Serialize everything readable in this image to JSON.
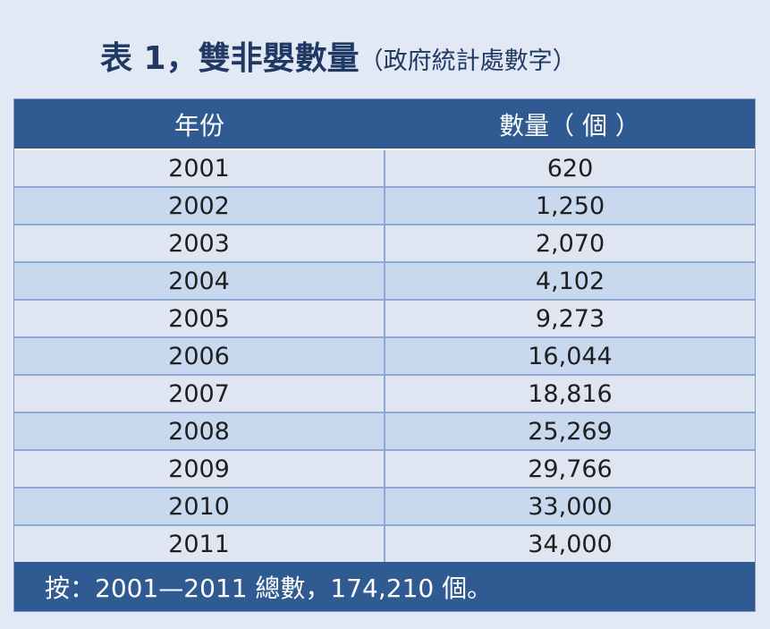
{
  "title": {
    "main": "表 1，雙非嬰數量",
    "sub": "（政府統計處數字）"
  },
  "table": {
    "headers": [
      "年份",
      "數量（ 個 ）"
    ],
    "rows": [
      {
        "year": "2001",
        "count": "620"
      },
      {
        "year": "2002",
        "count": "1,250"
      },
      {
        "year": "2003",
        "count": "2,070"
      },
      {
        "year": "2004",
        "count": "4,102"
      },
      {
        "year": "2005",
        "count": "9,273"
      },
      {
        "year": "2006",
        "count": "16,044"
      },
      {
        "year": "2007",
        "count": "18,816"
      },
      {
        "year": "2008",
        "count": "25,269"
      },
      {
        "year": "2009",
        "count": "29,766"
      },
      {
        "year": "2010",
        "count": "33,000"
      },
      {
        "year": "2011",
        "count": "34,000"
      }
    ],
    "footer": "按：2001—2011 總數，174,210 個。"
  },
  "colors": {
    "page_background": "#e3e9f4",
    "title_text": "#1f3864",
    "header_background": "#2f5a92",
    "row_light": "#dfe6f2",
    "row_dark": "#c8d8ee",
    "grid_line": "#8ea8d4"
  }
}
